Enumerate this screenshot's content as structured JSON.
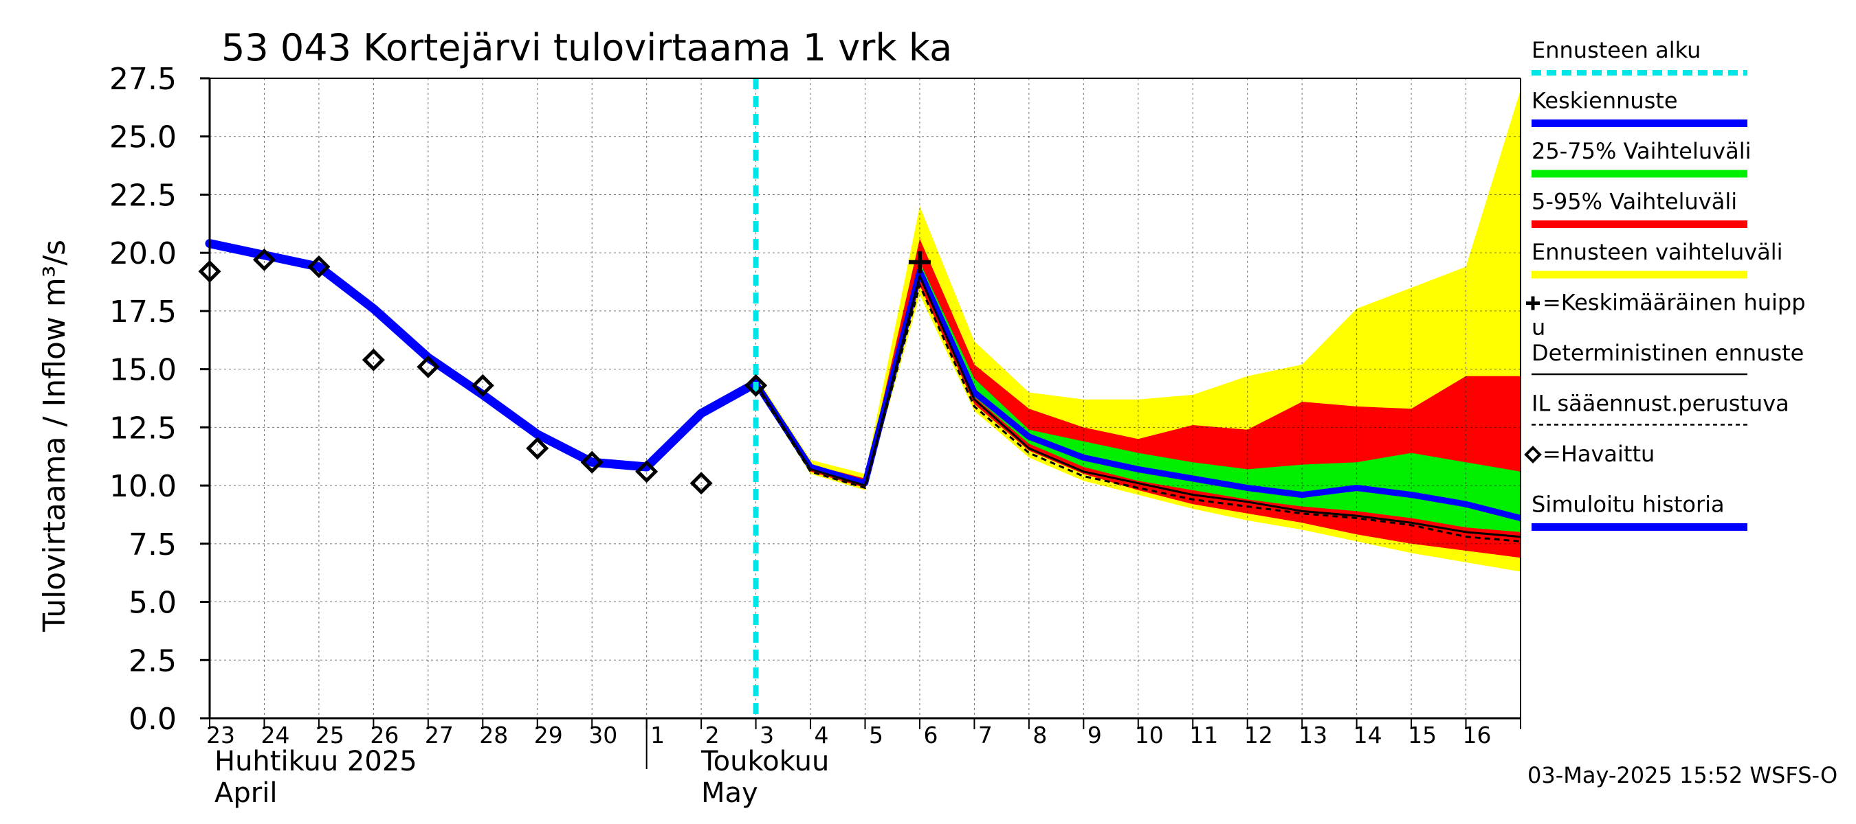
{
  "chart_data": {
    "type": "area",
    "title": "53 043 Kortejärvi tulovirtaama 1 vrk ka",
    "ylabel": "Tulovirtaama / Inflow   m³/s",
    "ylim": [
      0,
      27.5
    ],
    "yticks": [
      "0.0",
      "2.5",
      "5.0",
      "7.5",
      "10.0",
      "12.5",
      "15.0",
      "17.5",
      "20.0",
      "22.5",
      "25.0",
      "27.5"
    ],
    "x_days": [
      "23",
      "24",
      "25",
      "26",
      "27",
      "28",
      "29",
      "30",
      "1",
      "2",
      "3",
      "4",
      "5",
      "6",
      "7",
      "8",
      "9",
      "10",
      "11",
      "12",
      "13",
      "14",
      "15",
      "16"
    ],
    "months": [
      {
        "name_fi": "Huhtikuu  2025",
        "name_en": "April"
      },
      {
        "name_fi": "Toukokuu",
        "name_en": "May"
      }
    ],
    "forecast_start": "2025-05-03",
    "series": [
      {
        "name": "Simuloitu historia",
        "color": "#0000ff",
        "x": [
          "2025-04-23",
          "2025-04-24",
          "2025-04-25",
          "2025-04-26",
          "2025-04-27",
          "2025-04-28",
          "2025-04-29",
          "2025-04-30",
          "2025-05-01",
          "2025-05-02",
          "2025-05-03"
        ],
        "values": [
          20.4,
          19.9,
          19.4,
          17.6,
          15.5,
          13.9,
          12.2,
          11.0,
          10.8,
          13.1,
          14.4
        ]
      },
      {
        "name": "Havaittu",
        "x": [
          "2025-04-23",
          "2025-04-24",
          "2025-04-25",
          "2025-04-26",
          "2025-04-27",
          "2025-04-28",
          "2025-04-29",
          "2025-04-30",
          "2025-05-01",
          "2025-05-02",
          "2025-05-03"
        ],
        "values": [
          19.2,
          19.7,
          19.4,
          15.4,
          15.1,
          14.3,
          11.6,
          11.0,
          10.6,
          10.1,
          14.3
        ]
      },
      {
        "name": "Keskiennuste",
        "color": "#0000ff",
        "x": [
          "2025-05-03",
          "2025-05-04",
          "2025-05-05",
          "2025-05-06",
          "2025-05-07",
          "2025-05-08",
          "2025-05-09",
          "2025-05-10",
          "2025-05-11",
          "2025-05-12",
          "2025-05-13",
          "2025-05-14",
          "2025-05-15",
          "2025-05-16",
          "2025-05-17"
        ],
        "values": [
          14.4,
          10.8,
          10.1,
          19.2,
          14.0,
          12.1,
          11.2,
          10.7,
          10.3,
          9.9,
          9.6,
          9.9,
          9.6,
          9.2,
          8.6
        ]
      },
      {
        "name": "Deterministinen ennuste",
        "color": "#000000",
        "x": [
          "2025-05-03",
          "2025-05-04",
          "2025-05-05",
          "2025-05-06",
          "2025-05-07",
          "2025-05-08",
          "2025-05-09",
          "2025-05-10",
          "2025-05-11",
          "2025-05-12",
          "2025-05-13",
          "2025-05-14",
          "2025-05-15",
          "2025-05-16",
          "2025-05-17"
        ],
        "values": [
          14.4,
          10.7,
          10.0,
          19.0,
          13.7,
          11.6,
          10.6,
          10.1,
          9.6,
          9.3,
          8.9,
          8.7,
          8.4,
          8.0,
          7.8
        ]
      },
      {
        "name": "IL sääennust.perustuva",
        "color": "#000000",
        "x": [
          "2025-05-03",
          "2025-05-04",
          "2025-05-05",
          "2025-05-06",
          "2025-05-07",
          "2025-05-08",
          "2025-05-09",
          "2025-05-10",
          "2025-05-11",
          "2025-05-12",
          "2025-05-13",
          "2025-05-14",
          "2025-05-15",
          "2025-05-16",
          "2025-05-17"
        ],
        "values": [
          14.3,
          10.6,
          9.9,
          18.6,
          13.4,
          11.4,
          10.4,
          9.9,
          9.4,
          9.1,
          8.8,
          8.6,
          8.3,
          7.8,
          7.6
        ]
      }
    ],
    "bands": [
      {
        "name": "Ennusteen vaihteluväli",
        "color": "#ffff00",
        "x": [
          "2025-05-03",
          "2025-05-04",
          "2025-05-05",
          "2025-05-06",
          "2025-05-07",
          "2025-05-08",
          "2025-05-09",
          "2025-05-10",
          "2025-05-11",
          "2025-05-12",
          "2025-05-13",
          "2025-05-14",
          "2025-05-15",
          "2025-05-16",
          "2025-05-17"
        ],
        "low": [
          14.2,
          10.5,
          9.8,
          18.2,
          13.2,
          11.2,
          10.2,
          9.6,
          9.0,
          8.5,
          8.1,
          7.6,
          7.1,
          6.7,
          6.3
        ],
        "high": [
          14.7,
          11.1,
          10.5,
          22.0,
          16.2,
          14.0,
          13.7,
          13.7,
          13.9,
          14.7,
          15.2,
          17.6,
          18.5,
          19.4,
          27.0
        ]
      },
      {
        "name": "5-95% Vaihteluväli",
        "color": "#ff0000",
        "x": [
          "2025-05-03",
          "2025-05-04",
          "2025-05-05",
          "2025-05-06",
          "2025-05-07",
          "2025-05-08",
          "2025-05-09",
          "2025-05-10",
          "2025-05-11",
          "2025-05-12",
          "2025-05-13",
          "2025-05-14",
          "2025-05-15",
          "2025-05-16",
          "2025-05-17"
        ],
        "low": [
          14.3,
          10.6,
          9.9,
          18.6,
          13.5,
          11.5,
          10.5,
          9.8,
          9.2,
          8.8,
          8.4,
          7.9,
          7.5,
          7.2,
          6.9
        ],
        "high": [
          14.5,
          10.9,
          10.3,
          20.6,
          15.2,
          13.3,
          12.5,
          12.0,
          12.6,
          12.4,
          13.6,
          13.4,
          13.3,
          14.7,
          14.7
        ]
      },
      {
        "name": "25-75% Vaihteluväli",
        "color": "#00ee00",
        "x": [
          "2025-05-03",
          "2025-05-04",
          "2025-05-05",
          "2025-05-06",
          "2025-05-07",
          "2025-05-08",
          "2025-05-09",
          "2025-05-10",
          "2025-05-11",
          "2025-05-12",
          "2025-05-13",
          "2025-05-14",
          "2025-05-15",
          "2025-05-16",
          "2025-05-17"
        ],
        "low": [
          14.4,
          10.7,
          10.0,
          19.0,
          13.8,
          11.8,
          10.8,
          10.2,
          9.8,
          9.4,
          9.1,
          8.9,
          8.6,
          8.2,
          8.0
        ],
        "high": [
          14.4,
          10.8,
          10.1,
          19.6,
          14.6,
          12.4,
          11.9,
          11.4,
          11.0,
          10.7,
          10.9,
          11.0,
          11.4,
          11.0,
          10.6
        ]
      }
    ],
    "peak_marker": {
      "name": "Keskimääräinen huippu",
      "x": "2025-05-06",
      "value": 19.6
    },
    "legend": [
      {
        "label": "Ennusteen alku",
        "style": "dashed",
        "color": "#00e5e5"
      },
      {
        "label": "Keskiennuste",
        "style": "line",
        "color": "#0000ff"
      },
      {
        "label": "25-75% Vaihteluväli",
        "style": "line",
        "color": "#00ee00"
      },
      {
        "label": "5-95% Vaihteluväli",
        "style": "line",
        "color": "#ff0000"
      },
      {
        "label": "Ennusteen vaihteluväli",
        "style": "line",
        "color": "#ffff00"
      },
      {
        "label_line1": "=Keskimääräinen huipp",
        "label_line2": "u",
        "style": "cross",
        "color": "#000000"
      },
      {
        "label": "Deterministinen ennuste",
        "style": "thin",
        "color": "#000000"
      },
      {
        "label": "IL sääennust.perustuva",
        "style": "dotted",
        "color": "#000000"
      },
      {
        "label": "=Havaittu",
        "style": "diamond",
        "color": "#000000"
      },
      {
        "label": "Simuloitu historia",
        "style": "line",
        "color": "#0000ff"
      }
    ],
    "grid": true,
    "legend_position": "right"
  },
  "footer": "03-May-2025 15:52 WSFS-O"
}
